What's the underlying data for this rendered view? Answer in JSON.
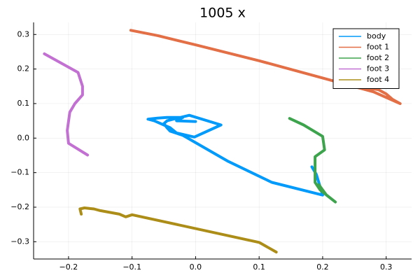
{
  "chart_data": {
    "type": "line",
    "title": "1005 x",
    "xlabel": "",
    "ylabel": "",
    "xlim": [
      -0.255,
      0.34
    ],
    "ylim": [
      -0.35,
      0.335
    ],
    "xticks": [
      -0.2,
      -0.1,
      0.0,
      0.1,
      0.2,
      0.3
    ],
    "xtick_labels": [
      "−0.2",
      "−0.1",
      "0.0",
      "0.1",
      "0.2",
      "0.3"
    ],
    "yticks": [
      -0.3,
      -0.2,
      -0.1,
      0.0,
      0.1,
      0.2,
      0.3
    ],
    "ytick_labels": [
      "−0.3",
      "−0.2",
      "−0.1",
      "0.0",
      "0.1",
      "0.2",
      "0.3"
    ],
    "grid": true,
    "legend_position": "top-right",
    "series": [
      {
        "name": "body",
        "color": "#009AFA",
        "points": [
          [
            0.183,
            -0.083
          ],
          [
            0.19,
            -0.105
          ],
          [
            0.2,
            -0.165
          ],
          [
            0.12,
            -0.128
          ],
          [
            0.05,
            -0.066
          ],
          [
            -0.02,
            0.008
          ],
          [
            -0.04,
            0.02
          ],
          [
            -0.045,
            0.03
          ],
          [
            -0.05,
            0.042
          ],
          [
            -0.045,
            0.05
          ],
          [
            -0.035,
            0.055
          ],
          [
            -0.01,
            0.066
          ],
          [
            0.04,
            0.038
          ],
          [
            -0.002,
            0.003
          ],
          [
            -0.03,
            0.015
          ],
          [
            -0.04,
            0.03
          ],
          [
            -0.065,
            0.05
          ],
          [
            -0.075,
            0.055
          ],
          [
            -0.06,
            0.058
          ],
          [
            -0.045,
            0.06
          ],
          [
            -0.02,
            0.06
          ],
          [
            -0.03,
            0.05
          ],
          [
            0.0,
            0.048
          ]
        ]
      },
      {
        "name": "foot 1",
        "color": "#E26F46",
        "points": [
          [
            -0.102,
            0.312
          ],
          [
            -0.06,
            0.297
          ],
          [
            0.0,
            0.27
          ],
          [
            0.1,
            0.224
          ],
          [
            0.2,
            0.174
          ],
          [
            0.28,
            0.134
          ],
          [
            0.322,
            0.1
          ],
          [
            0.31,
            0.112
          ],
          [
            0.3,
            0.128
          ],
          [
            0.288,
            0.14
          ],
          [
            0.265,
            0.147
          ]
        ]
      },
      {
        "name": "foot 2",
        "color": "#3DA44D",
        "points": [
          [
            0.148,
            0.057
          ],
          [
            0.17,
            0.038
          ],
          [
            0.2,
            0.005
          ],
          [
            0.203,
            -0.034
          ],
          [
            0.188,
            -0.054
          ],
          [
            0.188,
            -0.128
          ],
          [
            0.196,
            -0.15
          ],
          [
            0.22,
            -0.185
          ],
          [
            0.206,
            -0.165
          ],
          [
            0.194,
            -0.135
          ]
        ]
      },
      {
        "name": "foot 3",
        "color": "#C271D2",
        "points": [
          [
            -0.238,
            0.244
          ],
          [
            -0.185,
            0.19
          ],
          [
            -0.178,
            0.15
          ],
          [
            -0.178,
            0.125
          ],
          [
            -0.19,
            0.1
          ],
          [
            -0.198,
            0.075
          ],
          [
            -0.202,
            0.022
          ],
          [
            -0.2,
            -0.015
          ],
          [
            -0.17,
            -0.049
          ]
        ]
      },
      {
        "name": "foot 4",
        "color": "#AC8D18",
        "points": [
          [
            -0.18,
            -0.22
          ],
          [
            -0.182,
            -0.205
          ],
          [
            -0.175,
            -0.202
          ],
          [
            -0.16,
            -0.205
          ],
          [
            -0.15,
            -0.21
          ],
          [
            -0.12,
            -0.22
          ],
          [
            -0.11,
            -0.228
          ],
          [
            -0.1,
            -0.222
          ],
          [
            0.1,
            -0.302
          ],
          [
            0.127,
            -0.33
          ]
        ]
      }
    ]
  }
}
